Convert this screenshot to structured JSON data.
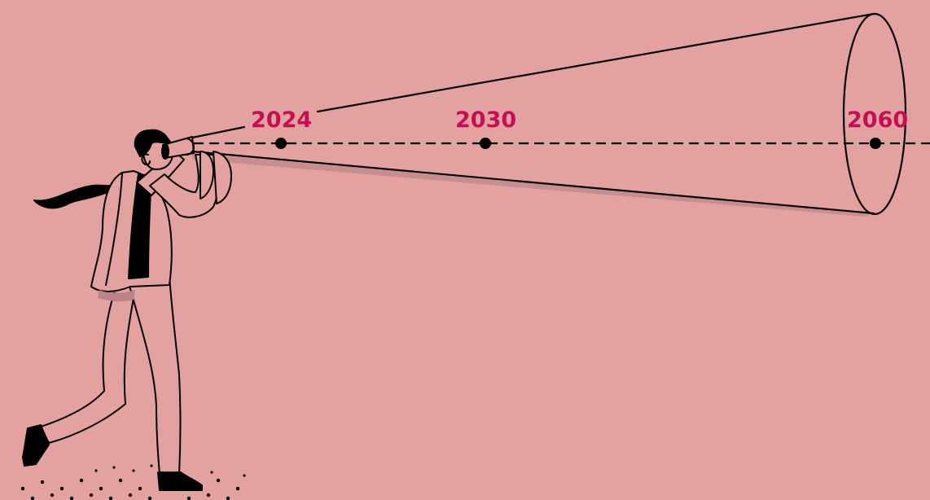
{
  "timeline": {
    "milestones": [
      {
        "year": "2024"
      },
      {
        "year": "2030"
      },
      {
        "year": "2060"
      }
    ]
  },
  "colors": {
    "background": "#e3a29f",
    "accent": "#c40f55",
    "ink": "#000000",
    "shadow": "#b98388"
  }
}
